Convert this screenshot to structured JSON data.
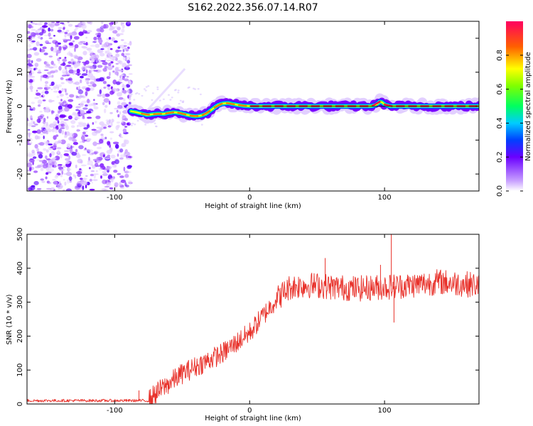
{
  "figure_title": "S162.2022.356.07.14.R07",
  "chart_data": [
    {
      "type": "heatmap",
      "xlabel": "Height of straight line (km)",
      "ylabel": "Frequency (Hz)",
      "xlim": [
        -165,
        170
      ],
      "ylim": [
        -25,
        25
      ],
      "xticks": [
        -100,
        0,
        100
      ],
      "yticks": [
        -20,
        -10,
        0,
        10,
        20
      ],
      "noise_region_x": [
        -165,
        -88
      ],
      "ridge": {
        "x": [
          -88,
          -84,
          -80,
          -76,
          -72,
          -68,
          -64,
          -60,
          -56,
          -52,
          -48,
          -44,
          -40,
          -36,
          -32,
          -28,
          -24,
          -20,
          -16,
          -12,
          -8,
          -4,
          0,
          20,
          60,
          90,
          94,
          97,
          100,
          104,
          170
        ],
        "freq": [
          -1.5,
          -1.8,
          -2.2,
          -2.6,
          -2.4,
          -2.2,
          -2.3,
          -2.0,
          -1.8,
          -2.0,
          -2.4,
          -2.8,
          -3.0,
          -2.8,
          -2.2,
          -1.0,
          0.2,
          0.8,
          0.9,
          0.6,
          0.3,
          0.1,
          0.0,
          0.0,
          0.0,
          0.0,
          0.4,
          1.5,
          0.5,
          0.0,
          0.0
        ]
      },
      "colorbar": {
        "label": "Normalized spectral amplitude",
        "ticks": [
          "0.0",
          "0.2",
          "0.4",
          "0.6",
          "0.8"
        ],
        "range": [
          0,
          1
        ]
      }
    },
    {
      "type": "line",
      "xlabel": "Height of straight line (km)",
      "ylabel": "SNR (10 * v/v)",
      "xlim": [
        -165,
        170
      ],
      "ylim": [
        0,
        500
      ],
      "xticks": [
        -100,
        0,
        100
      ],
      "yticks": [
        0,
        100,
        200,
        300,
        400,
        500
      ],
      "series": [
        {
          "name": "SNR",
          "color": "#e8312a",
          "trend_x": [
            -165,
            -75,
            -70,
            -60,
            -50,
            -40,
            -30,
            -20,
            -10,
            0,
            10,
            20,
            30,
            40,
            50,
            60,
            80,
            100,
            120,
            140,
            170
          ],
          "trend_y": [
            10,
            10,
            30,
            60,
            90,
            110,
            130,
            150,
            180,
            210,
            260,
            310,
            345,
            350,
            350,
            345,
            340,
            345,
            350,
            360,
            350
          ],
          "spikes": [
            [
              -82,
              40
            ],
            [
              56,
              430
            ],
            [
              105,
              510
            ],
            [
              107,
              240
            ],
            [
              97,
              410
            ]
          ]
        }
      ]
    }
  ]
}
